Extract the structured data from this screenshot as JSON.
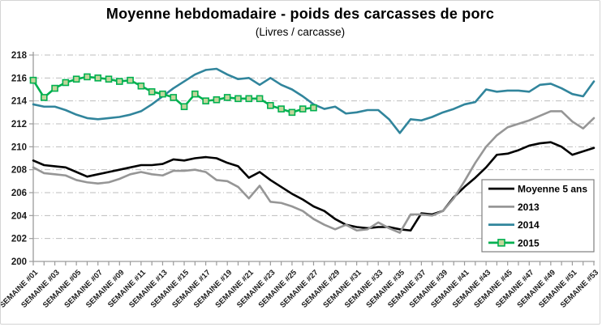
{
  "chart": {
    "title": "Moyenne hebdomadaire - poids des carcasses de porc",
    "subtitle": "(Livres / carcasse)"
  },
  "chart_data": {
    "type": "line",
    "title": "Moyenne hebdomadaire - poids des carcasses de porc",
    "subtitle": "(Livres / carcasse)",
    "weeks": 53,
    "x_tick_labels": [
      "SEMAINE #01",
      "SEMAINE #03",
      "SEMAINE #05",
      "SEMAINE #07",
      "SEMAINE #09",
      "SEMAINE #11",
      "SEMAINE #13",
      "SEMAINE #15",
      "SEMAINE #17",
      "SEMAINE #19",
      "SEMAINE #21",
      "SEMAINE #23",
      "SEMAINE #25",
      "SEMAINE #27",
      "SEMAINE #29",
      "SEMAINE #31",
      "SEMAINE #33",
      "SEMAINE #35",
      "SEMAINE #37",
      "SEMAINE #39",
      "SEMAINE #41",
      "SEMAINE #43",
      "SEMAINE #45",
      "SEMAINE #47",
      "SEMAINE #49",
      "SEMAINE #51",
      "SEMAINE #53"
    ],
    "x_label_every": 2,
    "ylim": [
      200,
      218
    ],
    "y_tick_step": 2,
    "y_tick_labels": [
      200,
      202,
      204,
      206,
      208,
      210,
      212,
      214,
      216,
      218
    ],
    "grid": "horizontal dash-dot",
    "grid_color": "#bdbdbd",
    "axis_color": "#9b9b9b",
    "legend_position": "inside-bottom-right",
    "series": [
      {
        "name": "Moyenne 5 ans",
        "color": "#000000",
        "marker": "none",
        "values": [
          208.8,
          208.4,
          208.3,
          208.2,
          207.8,
          207.4,
          207.6,
          207.8,
          208.0,
          208.2,
          208.4,
          208.4,
          208.5,
          208.9,
          208.8,
          209.0,
          209.1,
          209.0,
          208.6,
          208.3,
          207.3,
          207.8,
          207.1,
          206.5,
          205.9,
          205.4,
          204.8,
          204.4,
          203.7,
          203.2,
          203.0,
          202.9,
          203.0,
          203.0,
          202.8,
          202.7,
          204.2,
          204.1,
          204.4,
          205.6,
          206.5,
          207.3,
          208.2,
          209.3,
          209.4,
          209.7,
          210.1,
          210.3,
          210.4,
          210.0,
          209.3,
          209.6,
          209.9
        ]
      },
      {
        "name": "2013",
        "color": "#969696",
        "marker": "none",
        "values": [
          208.2,
          207.7,
          207.6,
          207.5,
          207.1,
          206.9,
          206.8,
          206.9,
          207.2,
          207.6,
          207.8,
          207.6,
          207.5,
          207.9,
          207.9,
          208.0,
          207.8,
          207.1,
          207.0,
          206.5,
          205.5,
          206.6,
          205.2,
          205.1,
          204.8,
          204.4,
          203.7,
          203.2,
          202.8,
          203.2,
          202.7,
          202.8,
          203.4,
          202.9,
          202.5,
          204.1,
          204.1,
          204.0,
          204.4,
          205.5,
          207.0,
          208.6,
          210.0,
          211.0,
          211.7,
          212.0,
          212.3,
          212.7,
          213.1,
          213.1,
          212.2,
          211.6,
          212.5
        ]
      },
      {
        "name": "2014",
        "color": "#31859c",
        "marker": "none",
        "values": [
          213.7,
          213.5,
          213.5,
          213.2,
          212.8,
          212.5,
          212.4,
          212.5,
          212.6,
          212.8,
          213.1,
          213.7,
          214.4,
          215.1,
          215.7,
          216.3,
          216.7,
          216.8,
          216.3,
          215.9,
          216.0,
          215.4,
          216.0,
          215.4,
          215.0,
          214.4,
          213.7,
          213.3,
          213.5,
          212.9,
          213.0,
          213.2,
          213.2,
          212.4,
          211.2,
          212.4,
          212.3,
          212.6,
          213.0,
          213.3,
          213.7,
          213.9,
          215.0,
          214.8,
          214.9,
          214.9,
          214.8,
          215.4,
          215.5,
          215.1,
          214.6,
          214.4,
          215.7
        ]
      },
      {
        "name": "2015",
        "color": "#00b050",
        "marker": "square",
        "marker_fill": "#c3d69b",
        "values": [
          215.8,
          214.3,
          215.1,
          215.6,
          215.9,
          216.1,
          216.0,
          215.9,
          215.7,
          215.8,
          215.3,
          214.8,
          214.6,
          214.3,
          213.5,
          214.6,
          214.0,
          214.1,
          214.3,
          214.2,
          214.2,
          214.2,
          213.6,
          213.3,
          213.0,
          213.3,
          213.4
        ]
      }
    ]
  }
}
